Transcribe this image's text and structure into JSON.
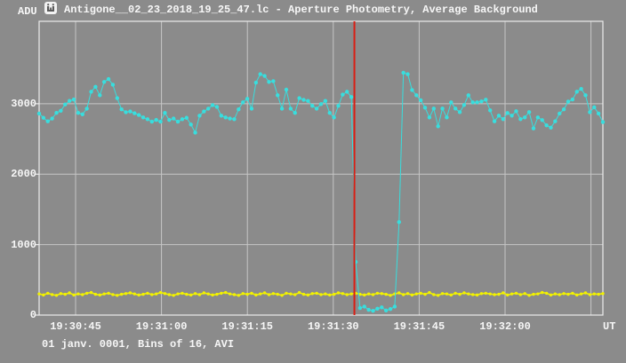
{
  "window": {
    "title": "Antigone__02_23_2018_19_25_47.lc - Aperture Photometry, Average Background",
    "app_icon": "app-logo-icon"
  },
  "colors": {
    "background": "#8b8b8b",
    "grid": "#c6c6c6",
    "axis": "#ececec",
    "text": "#f7f7f7",
    "target": "#38dede",
    "comparison": "#f2f200",
    "cursor": "#d91f14"
  },
  "footer": "01 janv. 0001, Bins of 16, AVI",
  "chart_data": {
    "type": "line",
    "title": "Antigone__02_23_2018_19_25_47.lc - Aperture Photometry, Average Background",
    "xlabel": "UT",
    "ylabel": "ADU",
    "x_ticks": [
      "19:30:45",
      "19:31:00",
      "19:31:15",
      "19:31:30",
      "19:31:45",
      "19:32:00"
    ],
    "x_range": [
      "19:30:38",
      "19:32:17"
    ],
    "y_ticks": [
      0,
      1000,
      2000,
      3000
    ],
    "ylim": [
      0,
      4170
    ],
    "grid": true,
    "legend_position": "none",
    "cursor": {
      "index": 72.7,
      "approx_time": "19:31:33"
    },
    "series": [
      {
        "name": "target-aperture-flux",
        "color": "#38dede",
        "marker": "circle",
        "values": [
          2860,
          2800,
          2750,
          2790,
          2870,
          2900,
          2990,
          3040,
          3060,
          2870,
          2850,
          2930,
          3170,
          3240,
          3120,
          3310,
          3350,
          3270,
          3080,
          2920,
          2880,
          2890,
          2865,
          2840,
          2805,
          2780,
          2745,
          2770,
          2745,
          2870,
          2770,
          2790,
          2745,
          2780,
          2800,
          2705,
          2590,
          2830,
          2890,
          2930,
          2980,
          2955,
          2830,
          2805,
          2790,
          2780,
          2920,
          3020,
          3070,
          2930,
          3300,
          3420,
          3395,
          3310,
          3320,
          3120,
          2930,
          3200,
          2930,
          2870,
          3080,
          3055,
          3040,
          2970,
          2930,
          2995,
          3040,
          2870,
          2805,
          2970,
          3130,
          3170,
          3095,
          755,
          100,
          120,
          75,
          60,
          90,
          110,
          65,
          85,
          120,
          1320,
          3440,
          3420,
          3195,
          3120,
          3050,
          2944,
          2806,
          2931,
          2680,
          2931,
          2806,
          3019,
          2931,
          2881,
          2982,
          3120,
          3019,
          3019,
          3032,
          3057,
          2906,
          2750,
          2831,
          2781,
          2869,
          2831,
          2894,
          2781,
          2806,
          2881,
          2650,
          2806,
          2768,
          2693,
          2660,
          2750,
          2860,
          2920,
          3030,
          3060,
          3170,
          3210,
          3120,
          2880,
          2950,
          2860,
          2740
        ]
      },
      {
        "name": "background-level",
        "color": "#f2f200",
        "marker": "square",
        "values": [
          300,
          285,
          310,
          290,
          280,
          305,
          295,
          315,
          285,
          300,
          290,
          310,
          320,
          295,
          285,
          300,
          310,
          290,
          280,
          295,
          305,
          315,
          300,
          285,
          295,
          310,
          290,
          300,
          320,
          305,
          290,
          280,
          300,
          310,
          295,
          285,
          305,
          290,
          315,
          300,
          285,
          295,
          310,
          320,
          300,
          290,
          280,
          305,
          295,
          310,
          285,
          300,
          315,
          290,
          305,
          295,
          280,
          310,
          300,
          290,
          320,
          295,
          285,
          305,
          310,
          290,
          300,
          285,
          295,
          315,
          305,
          290,
          300,
          310,
          295,
          285,
          300,
          290,
          310,
          305,
          295,
          280,
          300,
          315,
          290,
          305,
          285,
          300,
          310,
          295,
          320,
          290,
          280,
          305,
          300,
          285,
          310,
          295,
          315,
          300,
          290,
          285,
          305,
          310,
          300,
          290,
          295,
          315,
          285,
          300,
          310,
          290,
          305,
          280,
          295,
          300,
          320,
          310,
          285,
          300,
          290,
          305,
          295,
          310,
          285,
          300,
          315,
          290,
          300,
          295,
          305
        ]
      }
    ]
  }
}
